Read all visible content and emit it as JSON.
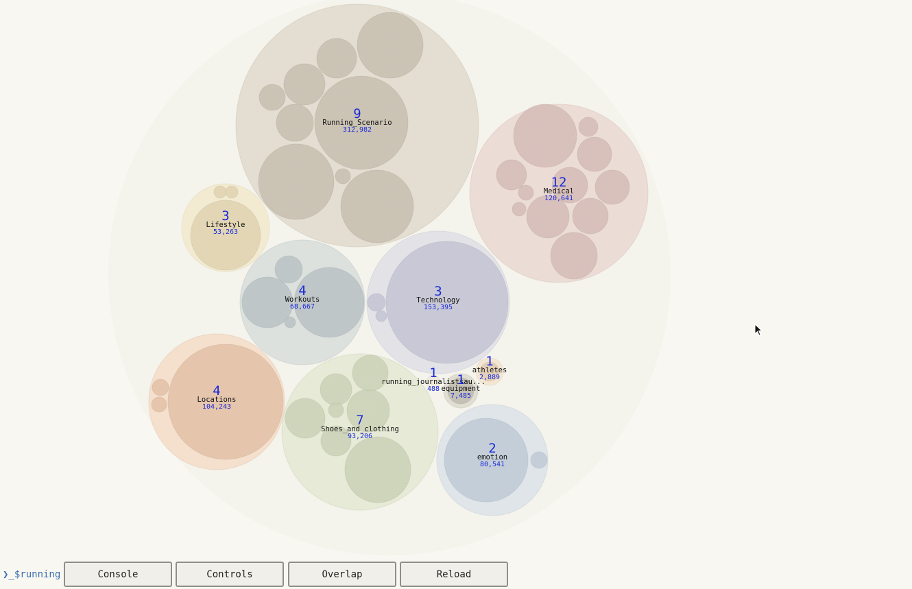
{
  "bubbles": [
    {
      "id": "running-scenario",
      "count": "9",
      "name": "Running_Scenario",
      "total": "312,982",
      "color": "#d6ccbc"
    },
    {
      "id": "medical",
      "count": "12",
      "name": "Medical",
      "total": "120,641",
      "color": "#e6c9c5"
    },
    {
      "id": "lifestyle",
      "count": "3",
      "name": "Lifestyle",
      "total": "53,263",
      "color": "#f1e3bd"
    },
    {
      "id": "workouts",
      "count": "4",
      "name": "Workouts",
      "total": "68,667",
      "color": "#c8d1d3"
    },
    {
      "id": "technology",
      "count": "3",
      "name": "Technology",
      "total": "153,395",
      "color": "#d3d3e4"
    },
    {
      "id": "locations",
      "count": "4",
      "name": "Locations",
      "total": "104,243",
      "color": "#f4cfb3"
    },
    {
      "id": "shoes-and-clothing",
      "count": "7",
      "name": "Shoes_and_clothing",
      "total": "93,206",
      "color": "#dbe2c4"
    },
    {
      "id": "emotion",
      "count": "2",
      "name": "emotion",
      "total": "80,541",
      "color": "#cdd9e6"
    },
    {
      "id": "athletes",
      "count": "1",
      "name": "athletes",
      "total": "2,889",
      "color": "#f3dcc1"
    },
    {
      "id": "running-journalists",
      "count": "1",
      "name": "running_journalists​au...",
      "total": "488",
      "color": "#e9e2cf"
    },
    {
      "id": "equipment",
      "count": "1",
      "name": "equipment",
      "total": "7,485",
      "color": "#cfcabd"
    }
  ],
  "toolbar": {
    "prompt": "$running",
    "prompt_glyph": "❯_",
    "buttons": [
      "Console",
      "Controls",
      "Overlap",
      "Reload"
    ]
  }
}
